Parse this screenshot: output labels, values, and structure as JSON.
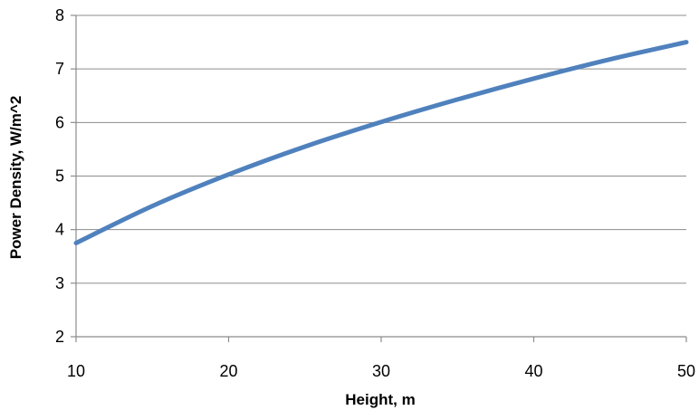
{
  "chart_data": {
    "type": "line",
    "title": "",
    "xlabel": "Height, m",
    "ylabel": "Power Density, W/m^2",
    "xlim": [
      10,
      50
    ],
    "ylim": [
      2,
      8
    ],
    "xticks": [
      "10",
      "20",
      "30",
      "40",
      "50"
    ],
    "yticks": [
      "2",
      "3",
      "4",
      "5",
      "6",
      "7",
      "8"
    ],
    "grid": true,
    "legend": "none",
    "series": [
      {
        "color": "#4F81BD",
        "x": [
          10,
          15,
          20,
          25,
          30,
          35,
          40,
          45,
          50
        ],
        "y": [
          3.75,
          4.44,
          5.03,
          5.55,
          6.01,
          6.43,
          6.82,
          7.18,
          7.5
        ]
      }
    ]
  }
}
